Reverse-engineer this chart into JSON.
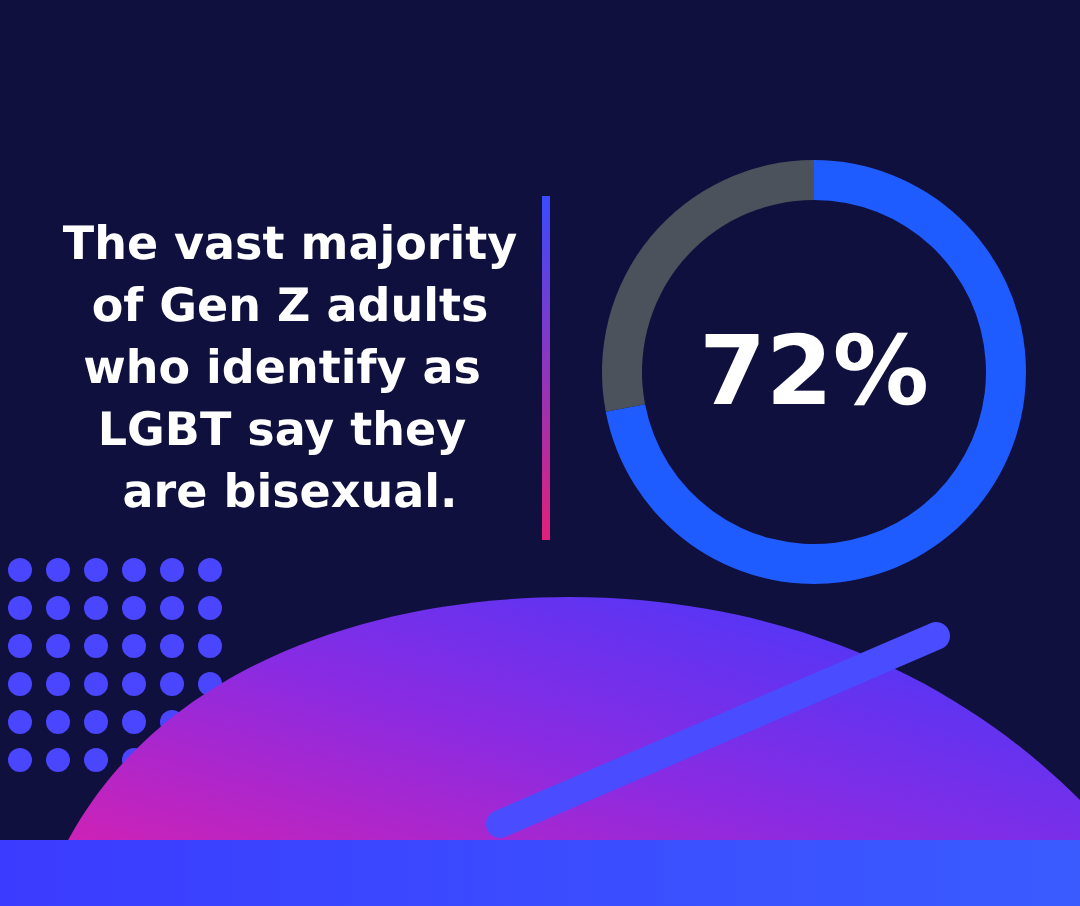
{
  "chart_data": {
    "type": "donut",
    "title": "The vast majority of Gen Z adults who identify as LGBT say they are bisexual.",
    "categories": [
      null,
      null
    ],
    "values": [
      72,
      28
    ],
    "colors": [
      "#1f5cff",
      "#4b525c"
    ],
    "annotations": [
      "72%"
    ]
  }
}
